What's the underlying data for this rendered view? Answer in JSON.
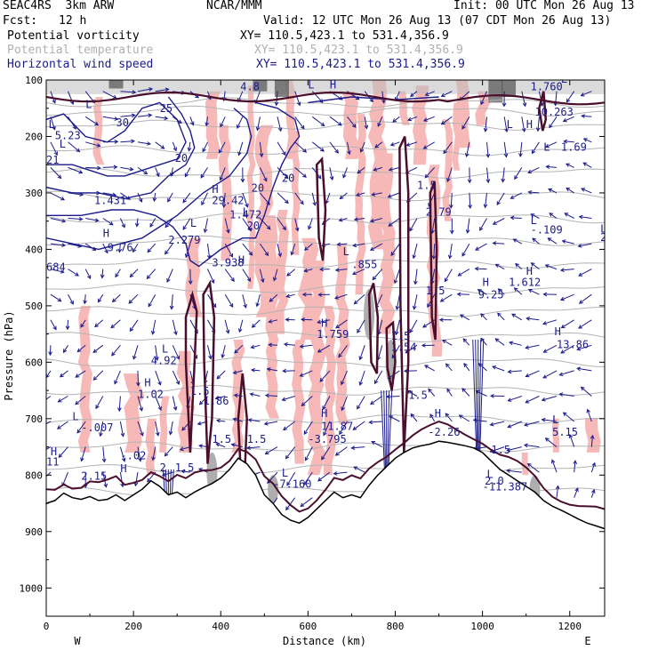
{
  "header": {
    "model": "SEAC4RS  3km ARW",
    "center": "NCAR/MMM",
    "init": "Init: 00 UTC Mon 26 Aug 13",
    "fcst_label": "Fcst:",
    "fcst_value": "12 h",
    "valid": "Valid: 12 UTC Mon 26 Aug 13 (07 CDT Mon 26 Aug 13)"
  },
  "legend": [
    {
      "name": "Potential vorticity",
      "xy": "XY= 110.5,423.1 to 531.4,356.9",
      "color": "#000000"
    },
    {
      "name": "Potential temperature",
      "xy": "XY= 110.5,423.1 to 531.4,356.9",
      "color": "#b0b0b0"
    },
    {
      "name": "Horizontal wind speed",
      "xy": "XY= 110.5,423.1 to 531.4,356.9",
      "color": "#1b1b8a"
    }
  ],
  "chart_data": {
    "type": "cross-section",
    "xlabel": "Distance (km)",
    "ylabel": "Pressure (hPa)",
    "xlim": [
      0,
      1280
    ],
    "ylim": [
      1050,
      100
    ],
    "y_reversed": true,
    "x_ticks": [
      0,
      200,
      400,
      600,
      800,
      1000,
      1200
    ],
    "y_ticks": [
      100,
      200,
      300,
      400,
      500,
      600,
      700,
      800,
      900,
      1000
    ],
    "x_end_labels": {
      "left": "W",
      "right": "E"
    },
    "terrain_pressure": [
      [
        0,
        850
      ],
      [
        20,
        845
      ],
      [
        40,
        832
      ],
      [
        60,
        840
      ],
      [
        80,
        843
      ],
      [
        100,
        838
      ],
      [
        120,
        845
      ],
      [
        140,
        843
      ],
      [
        160,
        835
      ],
      [
        180,
        845
      ],
      [
        200,
        835
      ],
      [
        220,
        825
      ],
      [
        240,
        810
      ],
      [
        260,
        820
      ],
      [
        280,
        835
      ],
      [
        300,
        830
      ],
      [
        320,
        840
      ],
      [
        340,
        830
      ],
      [
        360,
        822
      ],
      [
        380,
        815
      ],
      [
        400,
        805
      ],
      [
        420,
        790
      ],
      [
        440,
        770
      ],
      [
        460,
        780
      ],
      [
        480,
        800
      ],
      [
        500,
        835
      ],
      [
        520,
        850
      ],
      [
        540,
        870
      ],
      [
        560,
        880
      ],
      [
        580,
        885
      ],
      [
        600,
        875
      ],
      [
        620,
        860
      ],
      [
        640,
        845
      ],
      [
        660,
        830
      ],
      [
        680,
        840
      ],
      [
        700,
        835
      ],
      [
        720,
        840
      ],
      [
        740,
        818
      ],
      [
        760,
        800
      ],
      [
        780,
        785
      ],
      [
        800,
        770
      ],
      [
        820,
        760
      ],
      [
        840,
        752
      ],
      [
        860,
        748
      ],
      [
        880,
        745
      ],
      [
        900,
        740
      ],
      [
        920,
        742
      ],
      [
        940,
        745
      ],
      [
        960,
        748
      ],
      [
        980,
        752
      ],
      [
        1000,
        760
      ],
      [
        1020,
        775
      ],
      [
        1040,
        790
      ],
      [
        1060,
        800
      ],
      [
        1080,
        810
      ],
      [
        1100,
        820
      ],
      [
        1120,
        830
      ],
      [
        1140,
        845
      ],
      [
        1160,
        855
      ],
      [
        1180,
        862
      ],
      [
        1200,
        870
      ],
      [
        1220,
        878
      ],
      [
        1240,
        885
      ],
      [
        1260,
        890
      ],
      [
        1280,
        895
      ]
    ],
    "theta_levels_p": [
      140,
      155,
      180,
      225,
      265,
      305,
      345,
      385,
      425,
      470,
      510,
      555,
      600,
      650,
      700,
      750,
      790,
      830
    ],
    "wind_speed_labels": [
      {
        "x": 20,
        "p": 205,
        "text": "5.23"
      },
      {
        "x": 260,
        "p": 157,
        "text": "25"
      },
      {
        "x": 160,
        "p": 182,
        "text": "30"
      },
      {
        "x": 0,
        "p": 248,
        "text": "21"
      },
      {
        "x": 295,
        "p": 245,
        "text": "20"
      },
      {
        "x": 110,
        "p": 320,
        "text": "1.431"
      },
      {
        "x": 380,
        "p": 320,
        "text": "29.42"
      },
      {
        "x": 470,
        "p": 298,
        "text": "20"
      },
      {
        "x": 540,
        "p": 280,
        "text": "20"
      },
      {
        "x": 420,
        "p": 345,
        "text": "1.472"
      },
      {
        "x": 140,
        "p": 403,
        "text": "9.76"
      },
      {
        "x": 460,
        "p": 365,
        "text": "20"
      },
      {
        "x": 280,
        "p": 390,
        "text": "2.279"
      },
      {
        "x": 0,
        "p": 438,
        "text": "684"
      },
      {
        "x": 380,
        "p": 430,
        "text": "3.938"
      },
      {
        "x": 700,
        "p": 433,
        "text": ".855"
      },
      {
        "x": 1110,
        "p": 118,
        "text": "1.760"
      },
      {
        "x": 1120,
        "p": 163,
        "text": "10.263"
      },
      {
        "x": 1180,
        "p": 225,
        "text": "1.69"
      },
      {
        "x": 1110,
        "p": 372,
        "text": "-.109"
      },
      {
        "x": 1270,
        "p": 385,
        "text": "2.8"
      },
      {
        "x": 1060,
        "p": 465,
        "text": "1.612"
      },
      {
        "x": 990,
        "p": 487,
        "text": "9.25"
      },
      {
        "x": 620,
        "p": 557,
        "text": "1.759"
      },
      {
        "x": 1170,
        "p": 575,
        "text": "13.86"
      },
      {
        "x": 240,
        "p": 603,
        "text": "4.92"
      },
      {
        "x": 210,
        "p": 663,
        "text": "1.02"
      },
      {
        "x": 80,
        "p": 722,
        "text": "-.007"
      },
      {
        "x": 630,
        "p": 720,
        "text": "11.87"
      },
      {
        "x": 600,
        "p": 743,
        "text": "-3.795"
      },
      {
        "x": 1160,
        "p": 730,
        "text": "5.15"
      },
      {
        "x": 170,
        "p": 772,
        "text": "-.02"
      },
      {
        "x": 520,
        "p": 822,
        "text": "-7.160"
      },
      {
        "x": 1000,
        "p": 827,
        "text": "-11.387"
      },
      {
        "x": 875,
        "p": 730,
        "text": "-2.26"
      },
      {
        "x": 380,
        "p": 743,
        "text": "1.5"
      },
      {
        "x": 460,
        "p": 743,
        "text": "1.5"
      },
      {
        "x": 830,
        "p": 665,
        "text": "1.5"
      },
      {
        "x": 870,
        "p": 480,
        "text": "1.5"
      },
      {
        "x": 850,
        "p": 293,
        "text": "1.5"
      },
      {
        "x": 790,
        "p": 560,
        "text": "1.5"
      },
      {
        "x": 330,
        "p": 658,
        "text": "1.5"
      },
      {
        "x": 295,
        "p": 793,
        "text": "1.5"
      },
      {
        "x": 1020,
        "p": 762,
        "text": "1.5"
      },
      {
        "x": 1005,
        "p": 817,
        "text": "2.0"
      },
      {
        "x": 870,
        "p": 340,
        "text": "2.79"
      },
      {
        "x": 790,
        "p": 580,
        "text": "1.54"
      },
      {
        "x": 360,
        "p": 675,
        "text": "1.86"
      },
      {
        "x": 260,
        "p": 793,
        "text": "2"
      },
      {
        "x": 80,
        "p": 808,
        "text": "2.15"
      },
      {
        "x": 0,
        "p": 783,
        "text": "11"
      },
      {
        "x": 445,
        "p": 118,
        "text": "4.8"
      }
    ],
    "high_low_markers": [
      {
        "x": 5,
        "p": 185,
        "text": "L"
      },
      {
        "x": 30,
        "p": 220,
        "text": "L"
      },
      {
        "x": 90,
        "p": 150,
        "text": "L"
      },
      {
        "x": 600,
        "p": 115,
        "text": "L"
      },
      {
        "x": 650,
        "p": 115,
        "text": "H"
      },
      {
        "x": 1055,
        "p": 185,
        "text": "L"
      },
      {
        "x": 1180,
        "p": 105,
        "text": "L"
      },
      {
        "x": 1100,
        "p": 185,
        "text": "H"
      },
      {
        "x": 1140,
        "p": 225,
        "text": "L"
      },
      {
        "x": 380,
        "p": 300,
        "text": "H"
      },
      {
        "x": 130,
        "p": 378,
        "text": "H"
      },
      {
        "x": 330,
        "p": 360,
        "text": "L"
      },
      {
        "x": 450,
        "p": 340,
        "text": "L"
      },
      {
        "x": 1110,
        "p": 355,
        "text": "L"
      },
      {
        "x": 1270,
        "p": 370,
        "text": "L"
      },
      {
        "x": 680,
        "p": 410,
        "text": "L"
      },
      {
        "x": 1100,
        "p": 445,
        "text": "H"
      },
      {
        "x": 1000,
        "p": 465,
        "text": "H"
      },
      {
        "x": 440,
        "p": 425,
        "text": "H"
      },
      {
        "x": 630,
        "p": 537,
        "text": "H"
      },
      {
        "x": 1165,
        "p": 552,
        "text": "H"
      },
      {
        "x": 265,
        "p": 583,
        "text": "L"
      },
      {
        "x": 225,
        "p": 643,
        "text": "H"
      },
      {
        "x": 60,
        "p": 703,
        "text": "L"
      },
      {
        "x": 630,
        "p": 697,
        "text": "H"
      },
      {
        "x": 890,
        "p": 697,
        "text": "H"
      },
      {
        "x": 1160,
        "p": 708,
        "text": "L"
      },
      {
        "x": 10,
        "p": 765,
        "text": "H"
      },
      {
        "x": 540,
        "p": 803,
        "text": "L"
      },
      {
        "x": 1010,
        "p": 805,
        "text": "L"
      },
      {
        "x": 170,
        "p": 795,
        "text": "H"
      }
    ]
  }
}
